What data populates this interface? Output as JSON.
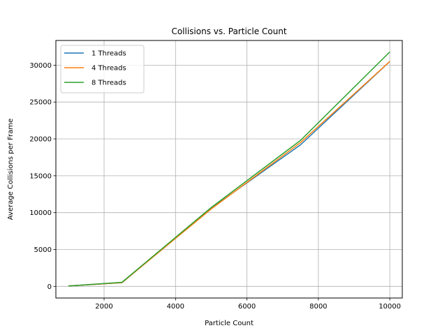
{
  "chart_data": {
    "type": "line",
    "title": "Collisions vs. Particle Count",
    "xlabel": "Particle Count",
    "ylabel": "Average Collisions per Frame",
    "x": [
      1000,
      2500,
      5000,
      7500,
      10000
    ],
    "xlim": [
      650,
      10350
    ],
    "ylim": [
      -1580,
      33350
    ],
    "xticks": [
      2000,
      4000,
      6000,
      8000,
      10000
    ],
    "yticks": [
      0,
      5000,
      10000,
      15000,
      20000,
      25000,
      30000
    ],
    "grid": true,
    "legend_position": "upper-left",
    "series": [
      {
        "name": "1 Threads",
        "color": "#1f77b4",
        "values": [
          50,
          500,
          10600,
          19200,
          30500
        ]
      },
      {
        "name": "4 Threads",
        "color": "#ff7f0e",
        "values": [
          50,
          500,
          10500,
          19500,
          30500
        ]
      },
      {
        "name": "8 Threads",
        "color": "#2ca02c",
        "values": [
          50,
          550,
          10700,
          19800,
          31800
        ]
      }
    ]
  }
}
